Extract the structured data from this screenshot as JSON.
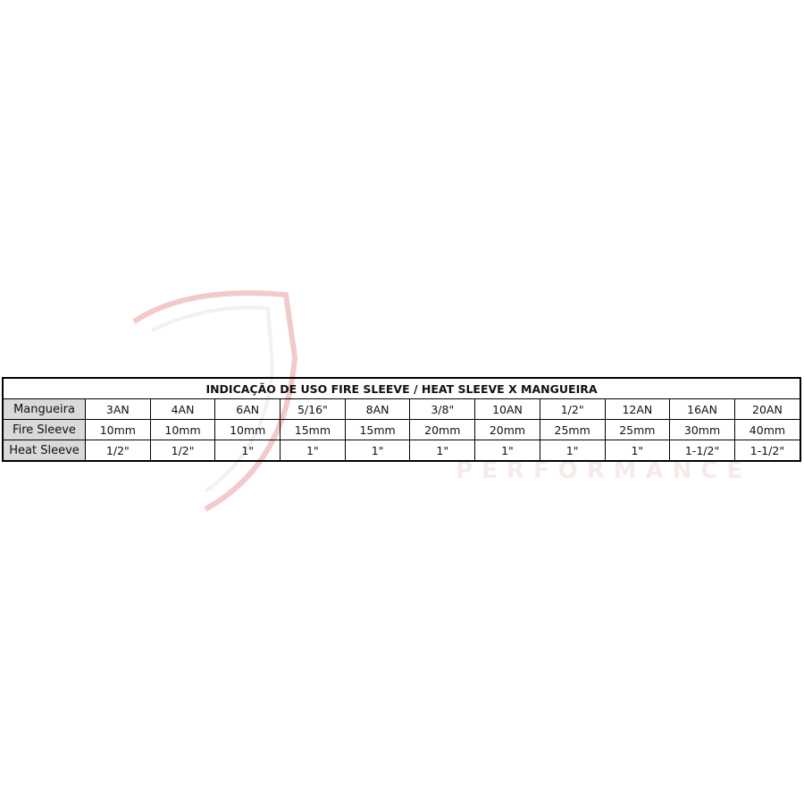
{
  "watermark": {
    "text": "PERFORMANCE",
    "color": "#e8a0a0"
  },
  "table": {
    "title": "INDICAÇÃO DE USO FIRE SLEEVE / HEAT SLEEVE X MANGUEIRA",
    "header_fill": "#d9d9d9",
    "rows": [
      {
        "label": "Mangueira",
        "cells": [
          "3AN",
          "4AN",
          "6AN",
          "5/16\"",
          "8AN",
          "3/8\"",
          "10AN",
          "1/2\"",
          "12AN",
          "16AN",
          "20AN"
        ]
      },
      {
        "label": "Fire Sleeve",
        "cells": [
          "10mm",
          "10mm",
          "10mm",
          "15mm",
          "15mm",
          "20mm",
          "20mm",
          "25mm",
          "25mm",
          "30mm",
          "40mm"
        ]
      },
      {
        "label": "Heat Sleeve",
        "cells": [
          "1/2\"",
          "1/2\"",
          "1\"",
          "1\"",
          "1\"",
          "1\"",
          "1\"",
          "1\"",
          "1\"",
          "1-1/2\"",
          "1-1/2\""
        ]
      }
    ]
  }
}
